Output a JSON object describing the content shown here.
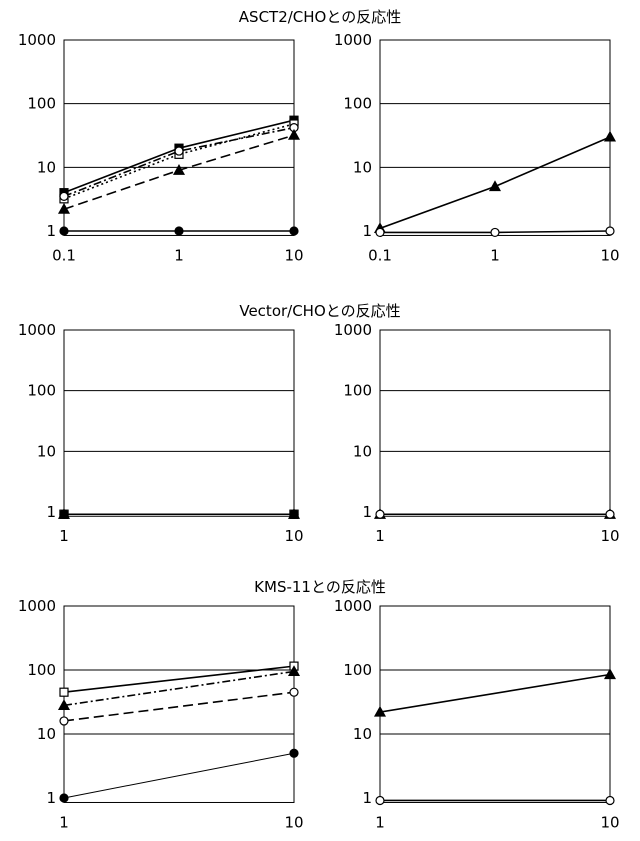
{
  "sections": [
    {
      "title": "ASCT2/CHOとの反応性"
    },
    {
      "title": "Vector/CHOとの反応性"
    },
    {
      "title": "KMS-11との反応性"
    }
  ],
  "chart_data": [
    {
      "type": "line",
      "row": 0,
      "col": 0,
      "x_scale": "log",
      "y_scale": "log",
      "x_ticks": [
        "0.1",
        "1",
        "10"
      ],
      "y_ticks": [
        "1",
        "10",
        "100",
        "1000"
      ],
      "xlim": [
        0.1,
        10
      ],
      "ylim": [
        1,
        1000
      ],
      "grid": "horizontal",
      "series": [
        {
          "marker": "filled-square",
          "dash": "solid",
          "x": [
            0.1,
            1,
            10
          ],
          "y": [
            4,
            20,
            55
          ]
        },
        {
          "marker": "open-square",
          "dash": "dot",
          "x": [
            0.1,
            1,
            10
          ],
          "y": [
            3.2,
            16,
            48
          ]
        },
        {
          "marker": "open-circle",
          "dash": "dash-dot",
          "x": [
            0.1,
            1,
            10
          ],
          "y": [
            3.5,
            18,
            42
          ]
        },
        {
          "marker": "filled-triangle",
          "dash": "long-dash",
          "x": [
            0.1,
            1,
            10
          ],
          "y": [
            2.2,
            9,
            32
          ]
        },
        {
          "marker": "filled-circle",
          "dash": "solid",
          "x": [
            0.1,
            1,
            10
          ],
          "y": [
            1,
            1,
            1
          ]
        }
      ]
    },
    {
      "type": "line",
      "row": 0,
      "col": 1,
      "x_scale": "log",
      "y_scale": "log",
      "x_ticks": [
        "0.1",
        "1",
        "10"
      ],
      "y_ticks": [
        "1",
        "10",
        "100",
        "1000"
      ],
      "xlim": [
        0.1,
        10
      ],
      "ylim": [
        1,
        1000
      ],
      "grid": "horizontal",
      "series": [
        {
          "marker": "filled-triangle",
          "dash": "solid",
          "x": [
            0.1,
            1,
            10
          ],
          "y": [
            1.1,
            5,
            30
          ]
        },
        {
          "marker": "open-circle",
          "dash": "solid",
          "x": [
            0.1,
            1,
            10
          ],
          "y": [
            0.95,
            0.95,
            1
          ]
        }
      ]
    },
    {
      "type": "line",
      "row": 1,
      "col": 0,
      "x_scale": "log",
      "y_scale": "log",
      "x_ticks": [
        "1",
        "10"
      ],
      "y_ticks": [
        "1",
        "10",
        "100",
        "1000"
      ],
      "xlim": [
        1,
        10
      ],
      "ylim": [
        1,
        1000
      ],
      "grid": "horizontal",
      "series": [
        {
          "marker": "filled-square",
          "dash": "solid",
          "x": [
            1,
            10
          ],
          "y": [
            0.9,
            0.9
          ]
        },
        {
          "marker": "open-square",
          "dash": "dot",
          "x": [
            1,
            10
          ],
          "y": [
            0.9,
            0.9
          ]
        },
        {
          "marker": "open-circle",
          "dash": "dash-dot",
          "x": [
            1,
            10
          ],
          "y": [
            0.9,
            0.9
          ]
        },
        {
          "marker": "filled-triangle",
          "dash": "long-dash",
          "x": [
            1,
            10
          ],
          "y": [
            0.9,
            0.9
          ]
        },
        {
          "marker": "filled-circle",
          "dash": "solid",
          "x": [
            1,
            10
          ],
          "y": [
            0.9,
            0.9
          ]
        }
      ]
    },
    {
      "type": "line",
      "row": 1,
      "col": 1,
      "x_scale": "log",
      "y_scale": "log",
      "x_ticks": [
        "1",
        "10"
      ],
      "y_ticks": [
        "1",
        "10",
        "100",
        "1000"
      ],
      "xlim": [
        1,
        10
      ],
      "ylim": [
        1,
        1000
      ],
      "grid": "horizontal",
      "series": [
        {
          "marker": "filled-triangle",
          "dash": "solid",
          "x": [
            1,
            10
          ],
          "y": [
            0.9,
            0.9
          ]
        },
        {
          "marker": "open-circle",
          "dash": "solid",
          "x": [
            1,
            10
          ],
          "y": [
            0.9,
            0.9
          ]
        }
      ]
    },
    {
      "type": "line",
      "row": 2,
      "col": 0,
      "x_scale": "log",
      "y_scale": "log",
      "x_ticks": [
        "1",
        "10"
      ],
      "y_ticks": [
        "1",
        "10",
        "100",
        "1000"
      ],
      "xlim": [
        1,
        10
      ],
      "ylim": [
        1,
        1000
      ],
      "grid": "horizontal",
      "series": [
        {
          "marker": "open-square",
          "dash": "solid",
          "x": [
            1,
            10
          ],
          "y": [
            45,
            115
          ]
        },
        {
          "marker": "filled-triangle",
          "dash": "dash-dot",
          "x": [
            1,
            10
          ],
          "y": [
            28,
            95
          ]
        },
        {
          "marker": "open-circle",
          "dash": "long-dash",
          "x": [
            1,
            10
          ],
          "y": [
            16,
            45
          ]
        },
        {
          "marker": "filled-circle",
          "dash": "thin",
          "x": [
            1,
            10
          ],
          "y": [
            1,
            5
          ]
        }
      ]
    },
    {
      "type": "line",
      "row": 2,
      "col": 1,
      "x_scale": "log",
      "y_scale": "log",
      "x_ticks": [
        "1",
        "10"
      ],
      "y_ticks": [
        "1",
        "10",
        "100",
        "1000"
      ],
      "xlim": [
        1,
        10
      ],
      "ylim": [
        1,
        1000
      ],
      "grid": "horizontal",
      "series": [
        {
          "marker": "filled-triangle",
          "dash": "solid",
          "x": [
            1,
            10
          ],
          "y": [
            22,
            85
          ]
        },
        {
          "marker": "open-circle",
          "dash": "solid",
          "x": [
            1,
            10
          ],
          "y": [
            0.8,
            0.8
          ]
        }
      ]
    }
  ]
}
